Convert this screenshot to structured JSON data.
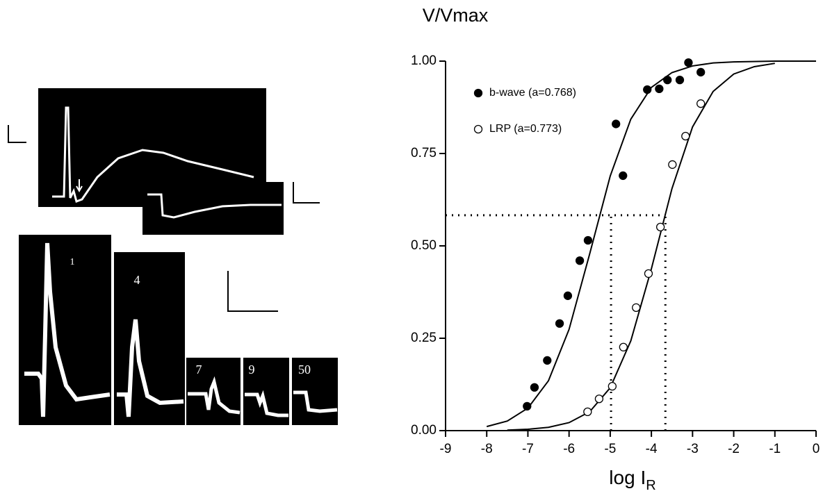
{
  "chart_data": {
    "type": "scatter",
    "title": "V/Vmax",
    "x_label": "log I",
    "x_label_subscript": "R",
    "xlim": [
      -9,
      0
    ],
    "xticks": [
      -9,
      -8,
      -7,
      -6,
      -5,
      -4,
      -3,
      -2,
      -1,
      0
    ],
    "ylim": [
      0,
      1
    ],
    "yticks": [
      {
        "value": 0,
        "label": "0.00"
      },
      {
        "value": 0.25,
        "label": "0.25"
      },
      {
        "value": 0.5,
        "label": "0.50"
      },
      {
        "value": 0.75,
        "label": "0.75"
      },
      {
        "value": 1,
        "label": "1.00"
      }
    ],
    "series": [
      {
        "name": "b-wave (a=0.768)",
        "color": "#000000",
        "marker": "filled",
        "x": [
          -7.02,
          -6.84,
          -6.53,
          -6.23,
          -6.03,
          -5.74,
          -5.54,
          -4.86,
          -4.69,
          -4.1,
          -3.81,
          -3.61,
          -3.31,
          -3.1,
          -2.8
        ],
        "values": [
          0.066,
          0.117,
          0.19,
          0.29,
          0.365,
          0.46,
          0.515,
          0.83,
          0.69,
          0.923,
          0.925,
          0.949,
          0.949,
          0.996,
          0.97
        ]
      },
      {
        "name": "LRP (a=0.773)",
        "color": "#000000",
        "marker": "open",
        "x": [
          -5.55,
          -5.27,
          -4.95,
          -4.68,
          -4.37,
          -4.07,
          -3.78,
          -3.49,
          -3.17,
          -2.8
        ],
        "values": [
          0.051,
          0.086,
          0.12,
          0.226,
          0.333,
          0.425,
          0.551,
          0.72,
          0.797,
          0.885
        ]
      }
    ],
    "fits": [
      {
        "color": "#000000",
        "x": [
          -8,
          -7.5,
          -7,
          -6.5,
          -6,
          -5.5,
          -5,
          -4.5,
          -4,
          -3.5,
          -3,
          -2.5,
          -2,
          -1,
          0
        ],
        "values": [
          0.011,
          0.026,
          0.061,
          0.135,
          0.274,
          0.478,
          0.689,
          0.843,
          0.929,
          0.969,
          0.987,
          0.995,
          0.998,
          1.0,
          1.0
        ]
      },
      {
        "color": "#000000",
        "x": [
          -7.5,
          -7,
          -6.5,
          -6,
          -5.5,
          -5,
          -4.5,
          -4,
          -3.5,
          -3,
          -2.5,
          -2,
          -1.5,
          -1
        ],
        "values": [
          0.0015,
          0.0037,
          0.009,
          0.0217,
          0.051,
          0.116,
          0.243,
          0.438,
          0.655,
          0.822,
          0.918,
          0.965,
          0.985,
          0.994
        ]
      }
    ],
    "reference_lines": {
      "y": 0.583,
      "x": [
        -4.98,
        -3.66
      ]
    }
  },
  "trace_panels": {
    "labels": [
      "1",
      "4",
      "7",
      "9",
      "50"
    ]
  }
}
